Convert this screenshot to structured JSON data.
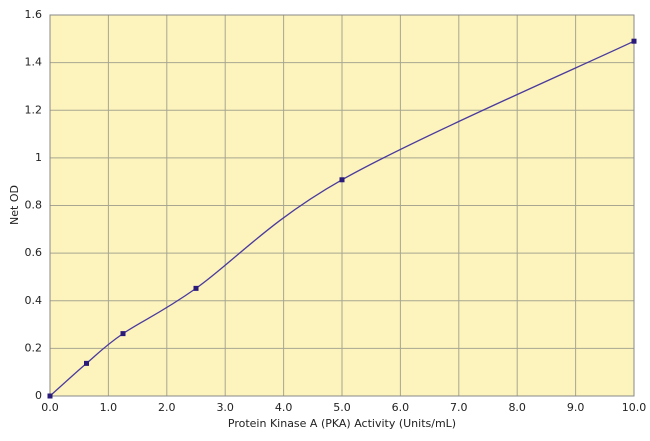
{
  "chart_data": {
    "type": "line",
    "x_label": "Protein Kinase A (PKA) Activity (Units/mL)",
    "y_label": "Net OD",
    "x": [
      0,
      0.625,
      1.25,
      2.5,
      5,
      10
    ],
    "values": [
      0,
      0.137,
      0.262,
      0.452,
      0.908,
      1.49
    ],
    "color": "#4a3a9e",
    "marker_color": "#2a1a7a",
    "background": "#fcf3bd",
    "xlim": [
      0,
      10
    ],
    "xticks": [
      {
        "value": 0,
        "label": "0.0"
      },
      {
        "value": 1,
        "label": "1.0"
      },
      {
        "value": 2,
        "label": "2.0"
      },
      {
        "value": 3,
        "label": "3.0"
      },
      {
        "value": 4,
        "label": "4.0"
      },
      {
        "value": 5,
        "label": "5.0"
      },
      {
        "value": 6,
        "label": "6.0"
      },
      {
        "value": 7,
        "label": "7.0"
      },
      {
        "value": 8,
        "label": "8.0"
      },
      {
        "value": 9,
        "label": "9.0"
      },
      {
        "value": 10,
        "label": "10.0"
      }
    ],
    "ylim": [
      0,
      1.6
    ],
    "yticks": [
      0,
      0.2,
      0.4,
      0.6,
      0.8,
      1,
      1.2,
      1.4,
      1.6
    ],
    "grid": true
  }
}
